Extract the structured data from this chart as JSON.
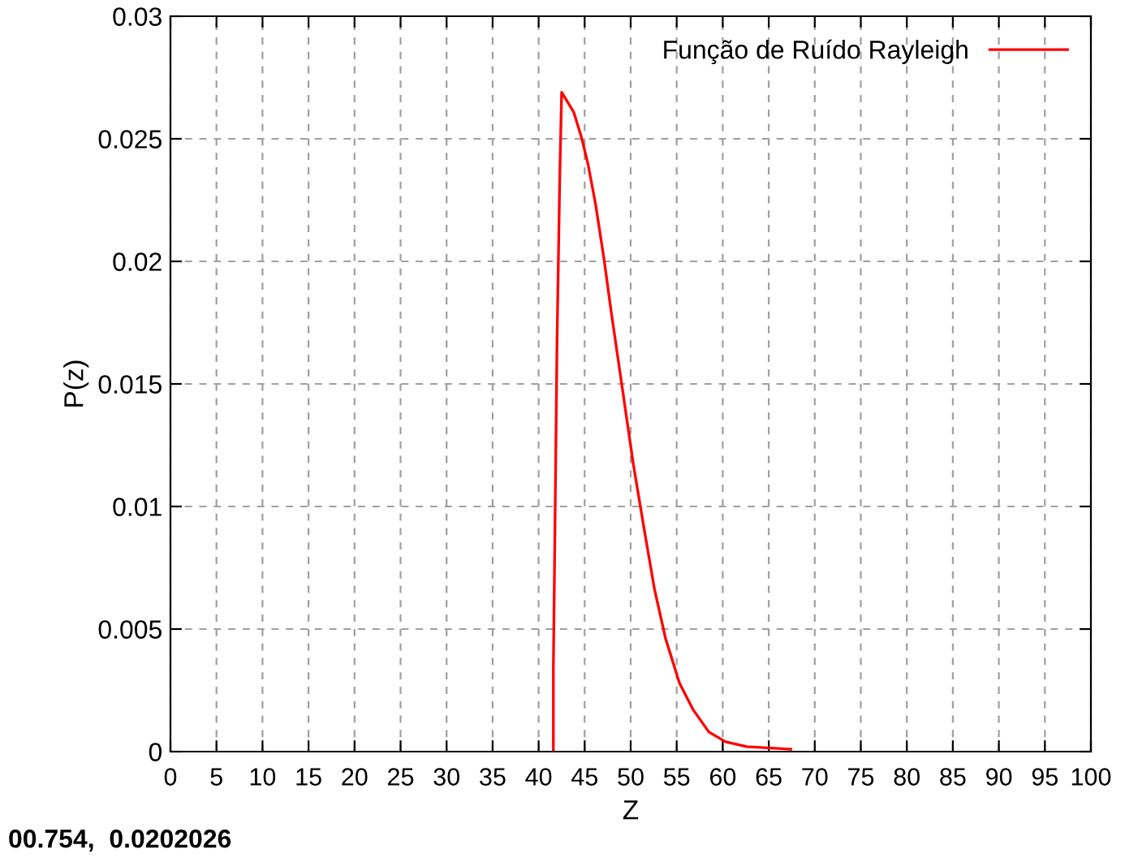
{
  "chart_data": {
    "type": "line",
    "xlabel": "Z",
    "ylabel": "P(z)",
    "annotations": [
      "00.754,  0.0202026"
    ],
    "xlim": [
      0,
      100
    ],
    "xticks": [
      0,
      5,
      10,
      15,
      20,
      25,
      30,
      35,
      40,
      45,
      50,
      55,
      60,
      65,
      70,
      75,
      80,
      85,
      90,
      95,
      100
    ],
    "ylim": [
      0,
      0.03
    ],
    "yticks": [
      {
        "value": 0,
        "label": "0"
      },
      {
        "value": 0.005,
        "label": "0.005"
      },
      {
        "value": 0.01,
        "label": "0.01"
      },
      {
        "value": 0.015,
        "label": "0.015"
      },
      {
        "value": 0.02,
        "label": "0.02"
      },
      {
        "value": 0.025,
        "label": "0.025"
      },
      {
        "value": 0.03,
        "label": "0.03"
      }
    ],
    "grid": true,
    "legend": "top right",
    "marker": "none",
    "line_style": "solid",
    "series": [
      {
        "name": "Função de Ruído Rayleigh",
        "color": "#ff0000",
        "x": [
          41.6,
          41.6,
          41.8,
          42.0,
          42.3,
          42.5,
          43.8,
          44.7,
          45.4,
          46.2,
          47.1,
          47.9,
          49.1,
          50.3,
          51.5,
          52.6,
          53.8,
          55.3,
          56.8,
          58.5,
          60.3,
          62.6,
          67.4
        ],
        "values": [
          0,
          0.0034,
          0.01,
          0.0168,
          0.0235,
          0.0269,
          0.0261,
          0.025,
          0.0239,
          0.0223,
          0.0201,
          0.0179,
          0.0148,
          0.0117,
          0.009,
          0.0066,
          0.0046,
          0.0028,
          0.0017,
          0.0008,
          0.0004,
          0.0002,
          0.0001
        ]
      }
    ]
  }
}
